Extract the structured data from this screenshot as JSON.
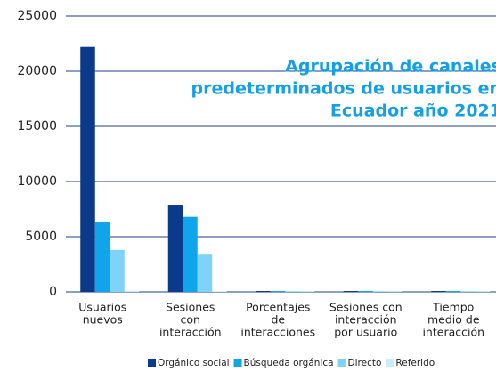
{
  "chart_data": {
    "type": "bar",
    "title": [
      "Agrupación de canales",
      "predeterminados de usuarios en",
      "Ecuador año 2021"
    ],
    "categories": [
      [
        "Usuarios",
        "nuevos"
      ],
      [
        "Sesiones",
        "con",
        "interacción"
      ],
      [
        "Porcentajes",
        "de",
        "interacciones"
      ],
      [
        "Sesiones con",
        "interacción",
        "por usuario"
      ],
      [
        "Tiempo",
        "medio de",
        "interacción"
      ]
    ],
    "series": [
      {
        "name": "Orgánico social",
        "color": "#0b3a8a",
        "values": [
          22200,
          7900,
          80,
          80,
          80
        ]
      },
      {
        "name": "Búsqueda orgánica",
        "color": "#10a5ea",
        "values": [
          6300,
          6800,
          80,
          80,
          80
        ]
      },
      {
        "name": "Directo",
        "color": "#7fd3fa",
        "values": [
          3800,
          3450,
          60,
          60,
          60
        ]
      },
      {
        "name": "Referido",
        "color": "#c8ecfb",
        "values": [
          100,
          60,
          30,
          30,
          30
        ]
      }
    ],
    "ylim": [
      0,
      25000
    ],
    "yticks": [
      0,
      5000,
      10000,
      15000,
      20000,
      25000
    ],
    "grid": true
  }
}
